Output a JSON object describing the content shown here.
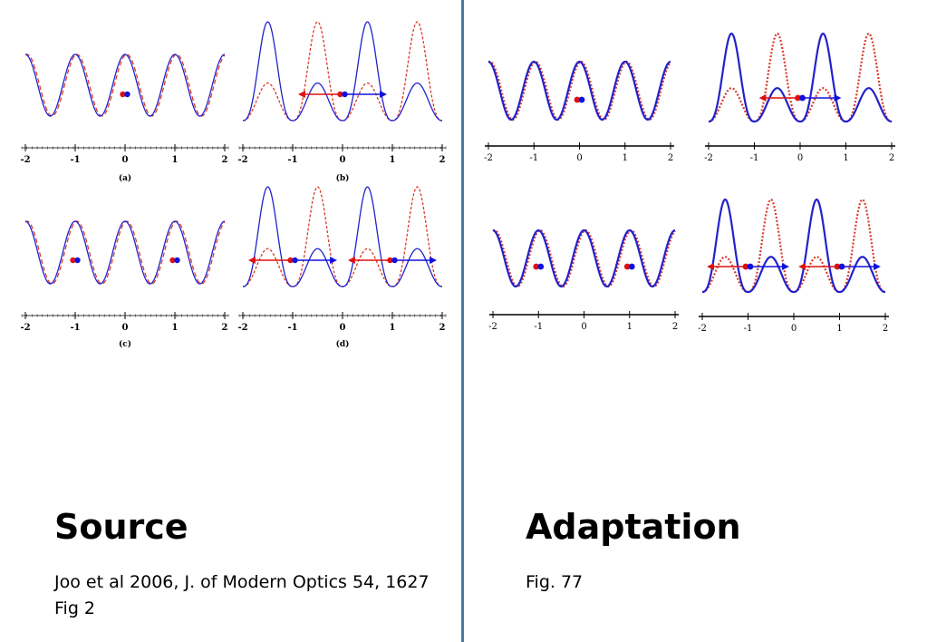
{
  "source": {
    "heading": "Source",
    "citation_line1": "Joo et al 2006, J. of Modern Optics 54, 1627",
    "citation_line2": "Fig 2",
    "panels": [
      {
        "id": "a",
        "label": "(a)",
        "type": "shallow",
        "ticks": [
          "-2",
          "-1",
          "0",
          "1",
          "2"
        ]
      },
      {
        "id": "b",
        "label": "(b)",
        "type": "deep-single",
        "ticks": [
          "-2",
          "-1",
          "0",
          "1",
          "2"
        ]
      },
      {
        "id": "c",
        "label": "(c)",
        "type": "shallow-double",
        "ticks": [
          "-2",
          "-1",
          "0",
          "1",
          "2"
        ]
      },
      {
        "id": "d",
        "label": "(d)",
        "type": "deep-double",
        "ticks": [
          "-2",
          "-1",
          "0",
          "1",
          "2"
        ]
      }
    ]
  },
  "adaptation": {
    "heading": "Adaptation",
    "caption": "Fig. 77",
    "ticks": [
      "-2",
      "-1",
      "0",
      "1",
      "2"
    ]
  },
  "colors": {
    "solid_curve": "#2222cc",
    "dashed_curve": "#d93a2a",
    "red_atom": "#dd1111",
    "blue_atom": "#1111dd",
    "divider": "#4a78a8"
  }
}
